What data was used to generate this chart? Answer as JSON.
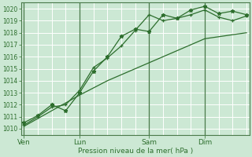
{
  "title": "",
  "xlabel": "Pression niveau de la mer( hPa )",
  "ylabel": "",
  "bg_color": "#cce8d4",
  "grid_color": "#b0d4bc",
  "line_color": "#2d6e2d",
  "vline_color": "#4a7a4a",
  "ylim": [
    1009.5,
    1020.5
  ],
  "yticks": [
    1010,
    1011,
    1012,
    1013,
    1014,
    1015,
    1016,
    1017,
    1018,
    1019,
    1020
  ],
  "day_labels": [
    "Ven",
    "Lun",
    "Sam",
    "Dim"
  ],
  "day_positions": [
    0,
    4,
    9,
    13
  ],
  "xlim": [
    -0.2,
    16.2
  ],
  "total_points": 17,
  "series1_x": [
    0,
    2,
    4,
    6,
    9,
    13,
    16
  ],
  "series1_y": [
    1010.2,
    1011.5,
    1012.8,
    1014.0,
    1015.5,
    1017.5,
    1018.0
  ],
  "series2_x": [
    0,
    1,
    2,
    3,
    4,
    5,
    6,
    7,
    8,
    9,
    10,
    11,
    12,
    13,
    14,
    15,
    16
  ],
  "series2_y": [
    1010.5,
    1011.1,
    1012.0,
    1011.5,
    1013.0,
    1014.8,
    1016.0,
    1017.7,
    1018.3,
    1018.1,
    1019.5,
    1019.2,
    1019.9,
    1020.2,
    1019.6,
    1019.8,
    1019.5
  ],
  "series3_x": [
    0,
    1,
    2,
    3,
    4,
    5,
    6,
    7,
    8,
    9,
    10,
    11,
    12,
    13,
    14,
    15,
    16
  ],
  "series3_y": [
    1010.3,
    1011.0,
    1011.8,
    1012.0,
    1013.2,
    1015.1,
    1015.9,
    1016.9,
    1018.2,
    1019.5,
    1019.0,
    1019.2,
    1019.5,
    1019.9,
    1019.3,
    1019.0,
    1019.4
  ]
}
